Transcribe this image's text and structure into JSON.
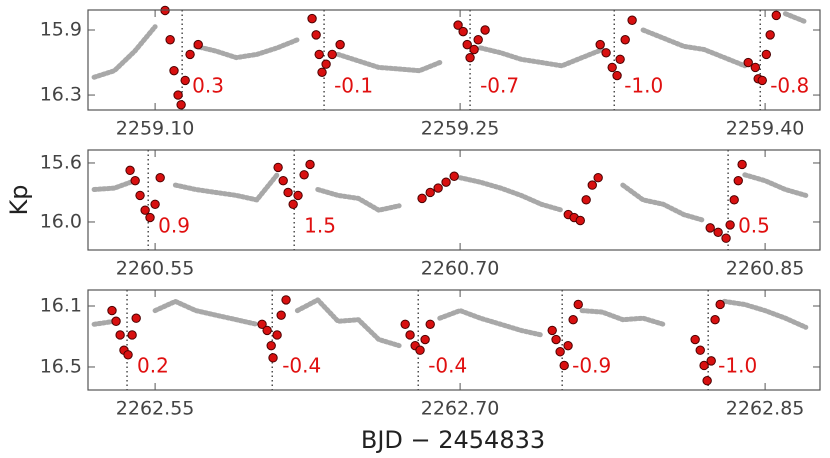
{
  "chart_data": [
    {
      "type": "scatter",
      "xlim": [
        2259.067,
        2259.427
      ],
      "ylim": [
        15.777,
        16.392
      ],
      "invert_y": true,
      "xticks": [
        {
          "value": 2259.1,
          "label": "2259.10"
        },
        2259.25,
        {
          "value": 2259.4,
          "label": "2259.40"
        }
      ],
      "yticks": [
        15.9,
        16.3
      ],
      "color": "#606060",
      "x": [
        2259.07,
        2259.08,
        2259.09,
        2259.1,
        2259.11,
        2259.12,
        2259.13,
        2259.14,
        2259.15,
        2259.16,
        2259.17,
        2259.18,
        2259.19,
        2259.2,
        2259.21,
        2259.22,
        2259.23,
        2259.24,
        2259.25,
        2259.26,
        2259.27,
        2259.28,
        2259.29,
        2259.3,
        2259.31,
        2259.32,
        2259.33,
        2259.34,
        2259.35,
        2259.36,
        2259.37,
        2259.38,
        2259.39,
        2259.4,
        2259.41,
        2259.42
      ],
      "values": [
        16.19,
        16.15,
        16.03,
        15.88,
        null,
        16.0,
        16.03,
        16.07,
        16.05,
        16.01,
        15.96,
        null,
        16.05,
        16.09,
        16.13,
        16.14,
        16.15,
        16.1,
        null,
        16.01,
        16.04,
        16.08,
        16.1,
        16.12,
        16.07,
        16.02,
        null,
        15.9,
        15.95,
        16.0,
        16.02,
        16.07,
        16.12,
        null,
        15.8,
        15.85
      ],
      "event_color": "#d81010",
      "events": [
        {
          "x": [
            2259.1049,
            2259.1074,
            2259.1093,
            2259.1113,
            2259.1128,
            2259.1148,
            2259.1172,
            2259.1212
          ],
          "values": [
            15.78,
            15.96,
            16.15,
            16.3,
            16.36,
            16.21,
            16.05,
            15.99
          ],
          "line_x": 2259.1133,
          "label": "0.3"
        },
        {
          "x": [
            2259.1772,
            2259.1792,
            2259.1807,
            2259.1821,
            2259.1841,
            2259.1871,
            2259.191
          ],
          "values": [
            15.83,
            15.93,
            16.05,
            16.16,
            16.11,
            16.05,
            15.99
          ],
          "line_x": 2259.1831,
          "label": "-0.1"
        },
        {
          "x": [
            2259.249,
            2259.2515,
            2259.2535,
            2259.2549,
            2259.2569,
            2259.2589,
            2259.2623
          ],
          "values": [
            15.87,
            15.91,
            15.99,
            16.07,
            16.02,
            15.96,
            15.9
          ],
          "line_x": 2259.2549,
          "label": "-0.7"
        },
        {
          "x": [
            2259.3189,
            2259.3218,
            2259.3248,
            2259.3272,
            2259.3287,
            2259.3312,
            2259.3346
          ],
          "values": [
            15.99,
            16.04,
            16.13,
            16.18,
            16.08,
            15.96,
            15.84
          ],
          "line_x": 2259.3258,
          "label": "-1.0"
        },
        {
          "x": [
            2259.3917,
            2259.3952,
            2259.3966,
            2259.3986,
            2259.4006,
            2259.4025,
            2259.4055
          ],
          "values": [
            16.1,
            16.13,
            16.2,
            16.21,
            16.05,
            15.93,
            15.81
          ],
          "line_x": 2259.3976,
          "label": "-0.8"
        }
      ]
    },
    {
      "type": "scatter",
      "xlim": [
        2260.517,
        2260.877
      ],
      "ylim": [
        15.512,
        16.19
      ],
      "invert_y": true,
      "ylabel": "Kp",
      "xticks": [
        2260.55,
        {
          "value": 2260.7,
          "label": "2260.70"
        },
        2260.85
      ],
      "yticks": [
        15.6,
        {
          "value": 16,
          "label": "16.0"
        }
      ],
      "color": "#606060",
      "x": [
        2260.52,
        2260.53,
        2260.54,
        2260.55,
        2260.56,
        2260.57,
        2260.58,
        2260.59,
        2260.6,
        2260.61,
        2260.62,
        2260.63,
        2260.64,
        2260.65,
        2260.66,
        2260.67,
        2260.68,
        2260.69,
        2260.7,
        2260.71,
        2260.72,
        2260.73,
        2260.74,
        2260.75,
        2260.76,
        2260.77,
        2260.78,
        2260.79,
        2260.8,
        2260.81,
        2260.82,
        2260.83,
        2260.84,
        2260.85,
        2260.86,
        2260.87
      ],
      "values": [
        15.78,
        15.77,
        15.72,
        null,
        15.75,
        15.78,
        15.8,
        15.82,
        15.85,
        15.68,
        null,
        15.78,
        15.82,
        15.84,
        15.92,
        15.89,
        null,
        null,
        15.7,
        15.73,
        15.77,
        15.82,
        15.88,
        15.92,
        null,
        null,
        15.75,
        15.85,
        15.88,
        15.95,
        15.99,
        null,
        15.68,
        15.72,
        15.78,
        15.82
      ],
      "event_color": "#d81010",
      "events": [
        {
          "x": [
            2260.5377,
            2260.5402,
            2260.5426,
            2260.5451,
            2260.5475,
            2260.55,
            2260.5525
          ],
          "values": [
            15.65,
            15.72,
            15.82,
            15.92,
            15.97,
            15.88,
            15.7
          ],
          "line_x": 2260.5466,
          "label": "0.9"
        },
        {
          "x": [
            2260.6105,
            2260.613,
            2260.6154,
            2260.6179,
            2260.6203,
            2260.6233,
            2260.6262
          ],
          "values": [
            15.63,
            15.72,
            15.8,
            15.88,
            15.82,
            15.68,
            15.61
          ],
          "line_x": 2260.6184,
          "label": "1.5"
        },
        {
          "x": [
            2260.6813,
            2260.6853,
            2260.6892,
            2260.6931,
            2260.6971
          ],
          "values": [
            15.84,
            15.8,
            15.77,
            15.73,
            15.69
          ]
        },
        {
          "x": [
            2260.7532,
            2260.7561,
            2260.7591,
            2260.762,
            2260.765,
            2260.7679
          ],
          "values": [
            15.95,
            15.97,
            15.99,
            15.85,
            15.75,
            15.7
          ]
        },
        {
          "x": [
            2260.823,
            2260.8269,
            2260.8308,
            2260.8328,
            2260.8348,
            2260.8368,
            2260.8387
          ],
          "values": [
            16.04,
            16.07,
            16.11,
            16.02,
            15.85,
            15.72,
            15.61
          ],
          "line_x": 2260.8318,
          "label": "0.5"
        }
      ]
    },
    {
      "type": "scatter",
      "xlim": [
        2262.517,
        2262.877
      ],
      "ylim": [
        15.995,
        16.651
      ],
      "invert_y": true,
      "xlabel": "BJD − 2454833",
      "xticks": [
        2262.55,
        {
          "value": 2262.7,
          "label": "2262.70"
        },
        2262.85
      ],
      "yticks": [
        16.1,
        16.5
      ],
      "color": "#606060",
      "x": [
        2262.52,
        2262.53,
        2262.54,
        2262.55,
        2262.56,
        2262.57,
        2262.58,
        2262.59,
        2262.6,
        2262.61,
        2262.62,
        2262.63,
        2262.64,
        2262.65,
        2262.66,
        2262.67,
        2262.68,
        2262.69,
        2262.7,
        2262.71,
        2262.72,
        2262.73,
        2262.74,
        2262.75,
        2262.76,
        2262.77,
        2262.78,
        2262.79,
        2262.8,
        2262.81,
        2262.82,
        2262.83,
        2262.84,
        2262.85,
        2262.86,
        2262.87
      ],
      "values": [
        16.22,
        16.2,
        null,
        16.13,
        16.07,
        16.13,
        16.16,
        16.19,
        16.22,
        null,
        16.13,
        16.06,
        16.2,
        16.19,
        16.32,
        16.36,
        null,
        16.18,
        16.13,
        16.18,
        16.22,
        16.26,
        16.29,
        null,
        16.13,
        16.14,
        16.19,
        16.18,
        16.22,
        null,
        null,
        16.07,
        16.09,
        16.13,
        16.18,
        16.24
      ],
      "event_color": "#d81010",
      "events": [
        {
          "x": [
            2262.5288,
            2262.5308,
            2262.5328,
            2262.5347,
            2262.5367,
            2262.5387,
            2262.5407
          ],
          "values": [
            16.13,
            16.2,
            16.29,
            16.39,
            16.42,
            16.29,
            16.18
          ],
          "line_x": 2262.5362,
          "label": "0.2"
        },
        {
          "x": [
            2262.6026,
            2262.6051,
            2262.6071,
            2262.608,
            2262.61,
            2262.612,
            2262.6144
          ],
          "values": [
            16.22,
            16.26,
            16.36,
            16.44,
            16.29,
            16.16,
            16.06
          ],
          "line_x": 2262.6076,
          "label": "-0.4"
        },
        {
          "x": [
            2262.673,
            2262.6754,
            2262.6779,
            2262.6803,
            2262.6828,
            2262.6853
          ],
          "values": [
            16.22,
            16.29,
            16.36,
            16.39,
            16.32,
            16.22
          ],
          "line_x": 2262.6794,
          "label": "-0.4"
        },
        {
          "x": [
            2262.7453,
            2262.7472,
            2262.7492,
            2262.7512,
            2262.7531,
            2262.7556,
            2262.7581
          ],
          "values": [
            16.26,
            16.32,
            16.4,
            16.49,
            16.36,
            16.19,
            16.09
          ],
          "line_x": 2262.7502,
          "label": "-0.9"
        },
        {
          "x": [
            2262.8156,
            2262.8181,
            2262.82,
            2262.8215,
            2262.8235,
            2262.8254,
            2262.8279
          ],
          "values": [
            16.32,
            16.39,
            16.49,
            16.59,
            16.46,
            16.19,
            16.09
          ],
          "line_x": 2262.822,
          "label": "-1.0"
        }
      ]
    }
  ]
}
